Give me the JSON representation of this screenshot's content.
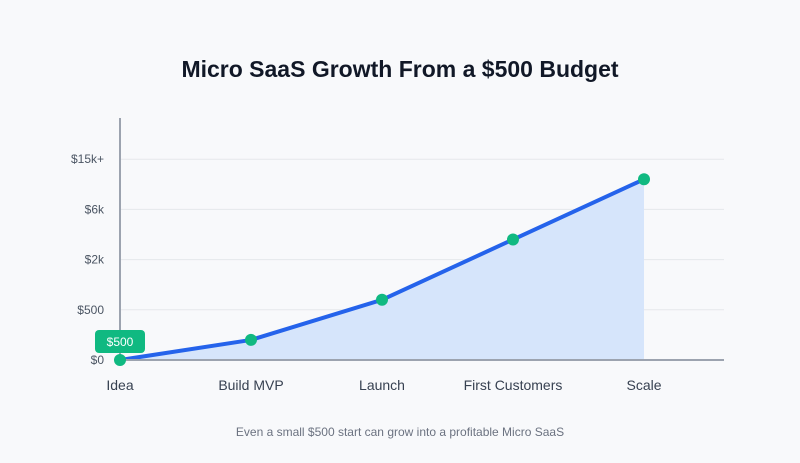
{
  "title": "Micro SaaS Growth From a $500 Budget",
  "caption": "Even a small $500 start can grow into a profitable Micro SaaS",
  "colors": {
    "line": "#2563eb",
    "area": "#d6e5fb",
    "point": "#10b981",
    "badge": "#10b981",
    "axis": "#9ca3af",
    "grid": "#e5e7eb"
  },
  "chart_data": {
    "type": "area",
    "title": "Micro SaaS Growth From a $500 Budget",
    "xlabel": "",
    "ylabel": "",
    "categories": [
      "Idea",
      "Build MVP",
      "Launch",
      "First Customers",
      "Scale"
    ],
    "y_scale": "ordinal (evenly spaced tick labels, non-linear)",
    "y_tick_labels": [
      "$0",
      "$500",
      "$2k",
      "$6k",
      "$15k+"
    ],
    "values_tick_index": [
      0,
      0.4,
      1.2,
      2.4,
      3.6
    ],
    "approx_values": [
      0,
      200,
      900,
      3600,
      11000
    ],
    "ylim_tick_index": [
      0,
      4.2
    ],
    "grid": true,
    "annotation": {
      "label": "$500",
      "category": "Idea"
    },
    "legend": "none"
  }
}
